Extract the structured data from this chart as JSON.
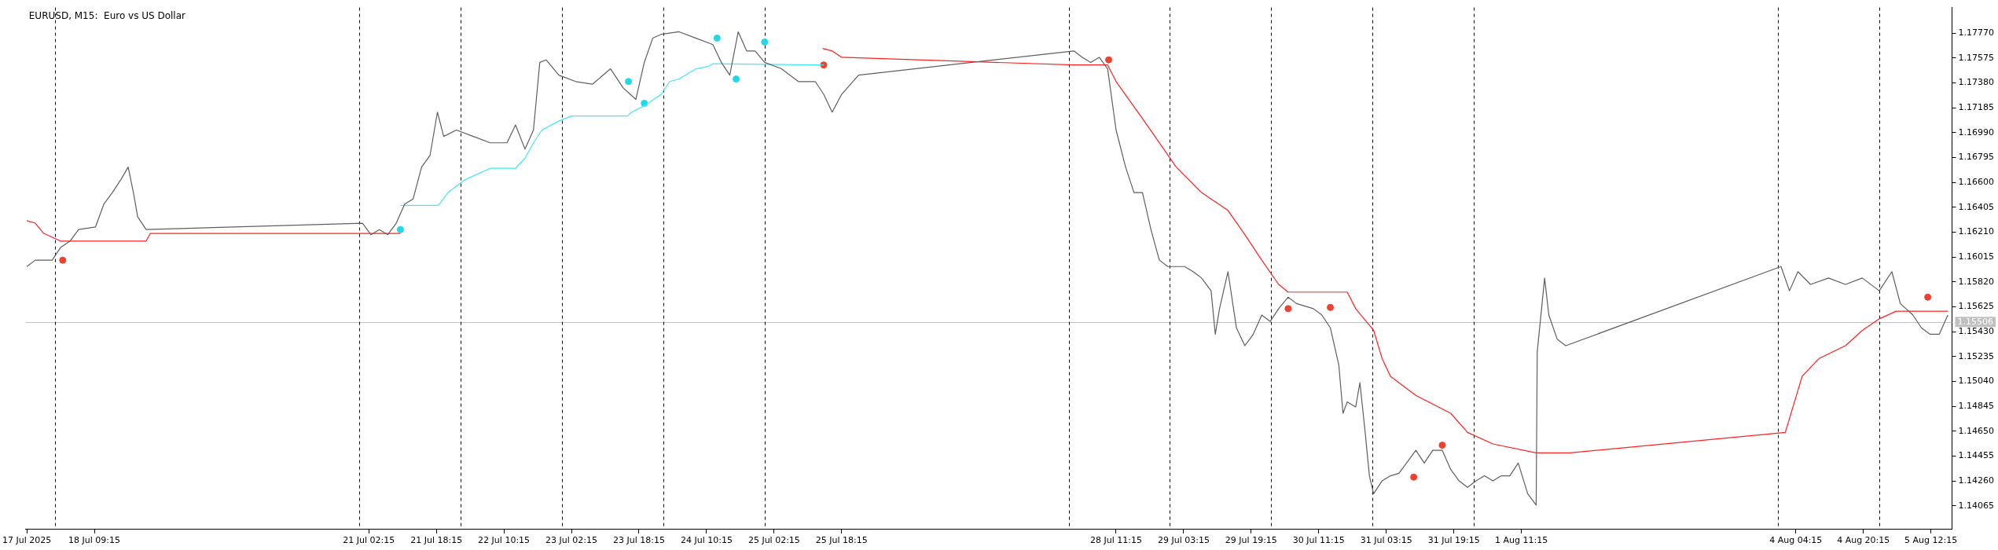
{
  "chart_data": {
    "type": "line",
    "title": "EURUSD, M15:  Euro vs US Dollar",
    "xlim": [
      "2025-07-17T17:00",
      "2025-08-05T17:15"
    ],
    "xticks": [
      {
        "value": "2025-07-17T17:15",
        "label": "17 Jul 2025"
      },
      {
        "value": "2025-07-18T09:15",
        "label": "18 Jul 09:15"
      },
      {
        "value": "2025-07-21T02:15",
        "label": "21 Jul 02:15"
      },
      {
        "value": "2025-07-21T18:15",
        "label": "21 Jul 18:15"
      },
      {
        "value": "2025-07-22T10:15",
        "label": "22 Jul 10:15"
      },
      {
        "value": "2025-07-23T02:15",
        "label": "23 Jul 02:15"
      },
      {
        "value": "2025-07-23T18:15",
        "label": "23 Jul 18:15"
      },
      {
        "value": "2025-07-24T10:15",
        "label": "24 Jul 10:15"
      },
      {
        "value": "2025-07-25T02:15",
        "label": "25 Jul 02:15"
      },
      {
        "value": "2025-07-25T18:15",
        "label": "25 Jul 18:15"
      },
      {
        "value": "2025-07-28T11:15",
        "label": "28 Jul 11:15"
      },
      {
        "value": "2025-07-29T03:15",
        "label": "29 Jul 03:15"
      },
      {
        "value": "2025-07-29T19:15",
        "label": "29 Jul 19:15"
      },
      {
        "value": "2025-07-30T11:15",
        "label": "30 Jul 11:15"
      },
      {
        "value": "2025-07-31T03:15",
        "label": "31 Jul 03:15"
      },
      {
        "value": "2025-07-31T19:15",
        "label": "31 Jul 19:15"
      },
      {
        "value": "2025-08-01T11:15",
        "label": "1 Aug 11:15"
      },
      {
        "value": "2025-08-04T04:15",
        "label": "4 Aug 04:15"
      },
      {
        "value": "2025-08-04T20:15",
        "label": "4 Aug 20:15"
      },
      {
        "value": "2025-08-05T12:15",
        "label": "5 Aug 12:15"
      }
    ],
    "ylim": [
      1.1388,
      1.1797
    ],
    "yticks": [
      {
        "value": 1.1777,
        "label": "1.17770"
      },
      {
        "value": 1.17575,
        "label": "1.17575"
      },
      {
        "value": 1.1738,
        "label": "1.17380"
      },
      {
        "value": 1.17185,
        "label": "1.17185"
      },
      {
        "value": 1.1699,
        "label": "1.16990"
      },
      {
        "value": 1.16795,
        "label": "1.16795"
      },
      {
        "value": 1.166,
        "label": "1.16600"
      },
      {
        "value": 1.16405,
        "label": "1.16405"
      },
      {
        "value": 1.1621,
        "label": "1.16210"
      },
      {
        "value": 1.16015,
        "label": "1.16015"
      },
      {
        "value": 1.1582,
        "label": "1.15820"
      },
      {
        "value": 1.15625,
        "label": "1.15625"
      },
      {
        "value": 1.1543,
        "label": "1.15430"
      },
      {
        "value": 1.15235,
        "label": "1.15235"
      },
      {
        "value": 1.1504,
        "label": "1.15040"
      },
      {
        "value": 1.14845,
        "label": "1.14845"
      },
      {
        "value": 1.1465,
        "label": "1.14650"
      },
      {
        "value": 1.14455,
        "label": "1.14455"
      },
      {
        "value": 1.1426,
        "label": "1.14260"
      },
      {
        "value": 1.14065,
        "label": "1.14065"
      }
    ],
    "grid": false,
    "legend": false,
    "marker": "none",
    "line_style": "solid",
    "ref_lines": [
      {
        "axis": "y",
        "value": 1.15506,
        "label": "1.15506",
        "color": "#c0c0c0",
        "line_style": "solid"
      },
      {
        "axis": "x",
        "value": "2025-07-18T00:00",
        "color": "#000000",
        "line_style": "dashed"
      },
      {
        "axis": "x",
        "value": "2025-07-21T00:00",
        "color": "#000000",
        "line_style": "dashed"
      },
      {
        "axis": "x",
        "value": "2025-07-22T00:00",
        "color": "#000000",
        "line_style": "dashed"
      },
      {
        "axis": "x",
        "value": "2025-07-23T00:00",
        "color": "#000000",
        "line_style": "dashed"
      },
      {
        "axis": "x",
        "value": "2025-07-24T00:00",
        "color": "#000000",
        "line_style": "dashed"
      },
      {
        "axis": "x",
        "value": "2025-07-25T00:00",
        "color": "#000000",
        "line_style": "dashed"
      },
      {
        "axis": "x",
        "value": "2025-07-28T00:00",
        "color": "#000000",
        "line_style": "dashed"
      },
      {
        "axis": "x",
        "value": "2025-07-29T00:00",
        "color": "#000000",
        "line_style": "dashed"
      },
      {
        "axis": "x",
        "value": "2025-07-30T00:00",
        "color": "#000000",
        "line_style": "dashed"
      },
      {
        "axis": "x",
        "value": "2025-07-31T00:00",
        "color": "#000000",
        "line_style": "dashed"
      },
      {
        "axis": "x",
        "value": "2025-08-01T00:00",
        "color": "#000000",
        "line_style": "dashed"
      },
      {
        "axis": "x",
        "value": "2025-08-04T00:00",
        "color": "#000000",
        "line_style": "dashed"
      },
      {
        "axis": "x",
        "value": "2025-08-05T00:00",
        "color": "#000000",
        "line_style": "dashed"
      }
    ],
    "series": [
      {
        "color": "#5f5f5f",
        "x": [
          "2025-07-17T17:15",
          "2025-07-17T19:15",
          "2025-07-17T23:15",
          "2025-07-18T01:15",
          "2025-07-18T03:30",
          "2025-07-18T05:30",
          "2025-07-18T09:30",
          "2025-07-18T11:30",
          "2025-07-18T13:30",
          "2025-07-18T15:30",
          "2025-07-18T17:15",
          "2025-07-18T18:30",
          "2025-07-18T19:30",
          "2025-07-18T21:30",
          "2025-07-21T00:45",
          "2025-07-21T02:45",
          "2025-07-21T04:45",
          "2025-07-21T06:45",
          "2025-07-21T08:45",
          "2025-07-21T10:45",
          "2025-07-21T12:45",
          "2025-07-21T14:45",
          "2025-07-21T16:45",
          "2025-07-21T18:30",
          "2025-07-21T20:00",
          "2025-07-21T23:00",
          "2025-07-22T03:00",
          "2025-07-22T07:00",
          "2025-07-22T11:00",
          "2025-07-22T13:00",
          "2025-07-22T15:15",
          "2025-07-22T17:15",
          "2025-07-22T18:45",
          "2025-07-22T20:15",
          "2025-07-22T23:15",
          "2025-07-23T03:15",
          "2025-07-23T07:15",
          "2025-07-23T11:30",
          "2025-07-23T14:30",
          "2025-07-23T17:30",
          "2025-07-23T19:30",
          "2025-07-23T21:30",
          "2025-07-23T23:30",
          "2025-07-24T03:45",
          "2025-07-24T07:45",
          "2025-07-24T11:45",
          "2025-07-24T13:45",
          "2025-07-24T15:45",
          "2025-07-24T17:45",
          "2025-07-24T19:45",
          "2025-07-24T21:45",
          "2025-07-25T00:00",
          "2025-07-25T04:00",
          "2025-07-25T08:00",
          "2025-07-25T12:00",
          "2025-07-25T14:00",
          "2025-07-25T16:00",
          "2025-07-25T18:15",
          "2025-07-25T22:15",
          "2025-07-28T01:15",
          "2025-07-28T03:15",
          "2025-07-28T05:15",
          "2025-07-28T07:15",
          "2025-07-28T09:15",
          "2025-07-28T11:15",
          "2025-07-28T13:30",
          "2025-07-28T15:30",
          "2025-07-28T17:30",
          "2025-07-28T19:30",
          "2025-07-28T21:30",
          "2025-07-28T23:30",
          "2025-07-29T03:30",
          "2025-07-29T05:30",
          "2025-07-29T07:30",
          "2025-07-29T09:45",
          "2025-07-29T10:45",
          "2025-07-29T11:45",
          "2025-07-29T13:45",
          "2025-07-29T15:45",
          "2025-07-29T17:45",
          "2025-07-29T19:45",
          "2025-07-29T21:45",
          "2025-07-29T23:45",
          "2025-07-30T01:45",
          "2025-07-30T04:00",
          "2025-07-30T06:00",
          "2025-07-30T10:00",
          "2025-07-30T12:00",
          "2025-07-30T14:00",
          "2025-07-30T16:00",
          "2025-07-30T17:00",
          "2025-07-30T18:00",
          "2025-07-30T20:00",
          "2025-07-30T21:00",
          "2025-07-30T22:15",
          "2025-07-30T23:15",
          "2025-07-31T00:15",
          "2025-07-31T02:15",
          "2025-07-31T04:15",
          "2025-07-31T06:15",
          "2025-07-31T10:15",
          "2025-07-31T12:15",
          "2025-07-31T14:15",
          "2025-07-31T16:30",
          "2025-07-31T18:30",
          "2025-07-31T20:30",
          "2025-07-31T22:30",
          "2025-08-01T00:30",
          "2025-08-01T02:30",
          "2025-08-01T04:30",
          "2025-08-01T06:30",
          "2025-08-01T08:30",
          "2025-08-01T10:30",
          "2025-08-01T12:45",
          "2025-08-01T14:45",
          "2025-08-01T15:00",
          "2025-08-01T16:45",
          "2025-08-01T17:45",
          "2025-08-01T19:45",
          "2025-08-01T21:45",
          "2025-08-04T00:45",
          "2025-08-04T02:45",
          "2025-08-04T04:45",
          "2025-08-04T07:45",
          "2025-08-04T12:00",
          "2025-08-04T16:00",
          "2025-08-04T20:00",
          "2025-08-05T00:00",
          "2025-08-05T03:00",
          "2025-08-05T05:00",
          "2025-08-05T08:00",
          "2025-08-05T10:00",
          "2025-08-05T12:00",
          "2025-08-05T14:15",
          "2025-08-05T16:15"
        ],
        "values": [
          1.1594,
          1.1599,
          1.1599,
          1.1609,
          1.1614,
          1.1623,
          1.1625,
          1.1643,
          1.1652,
          1.1662,
          1.1672,
          1.1652,
          1.1633,
          1.1623,
          1.1628,
          1.1619,
          1.1623,
          1.1619,
          1.1628,
          1.1643,
          1.1647,
          1.1672,
          1.1681,
          1.1715,
          1.1696,
          1.1701,
          1.1696,
          1.1691,
          1.1691,
          1.1705,
          1.1686,
          1.1701,
          1.1754,
          1.1756,
          1.1744,
          1.1739,
          1.1737,
          1.1749,
          1.1734,
          1.1725,
          1.1754,
          1.1773,
          1.1776,
          1.1778,
          1.1773,
          1.1768,
          1.1754,
          1.1744,
          1.1778,
          1.1763,
          1.1763,
          1.1754,
          1.1749,
          1.1739,
          1.1739,
          1.1729,
          1.1715,
          1.1729,
          1.1744,
          1.1763,
          1.1758,
          1.1754,
          1.1758,
          1.1749,
          1.1701,
          1.1672,
          1.1652,
          1.1652,
          1.1623,
          1.1599,
          1.1594,
          1.1594,
          1.159,
          1.1585,
          1.1575,
          1.1541,
          1.1561,
          1.159,
          1.1546,
          1.1532,
          1.1541,
          1.1556,
          1.1551,
          1.1561,
          1.157,
          1.1565,
          1.1561,
          1.1556,
          1.1546,
          1.1517,
          1.1479,
          1.1488,
          1.1484,
          1.1503,
          1.1464,
          1.143,
          1.1416,
          1.1426,
          1.143,
          1.1432,
          1.145,
          1.144,
          1.145,
          1.145,
          1.1435,
          1.1426,
          1.1421,
          1.1426,
          1.143,
          1.1426,
          1.143,
          1.143,
          1.144,
          1.1416,
          1.1407,
          1.1527,
          1.1585,
          1.1556,
          1.1537,
          1.1532,
          1.1594,
          1.1575,
          1.159,
          1.158,
          1.1585,
          1.158,
          1.1585,
          1.1575,
          1.159,
          1.1565,
          1.1556,
          1.1546,
          1.1541,
          1.1541,
          1.1556
        ]
      },
      {
        "color": "#ff2020",
        "x": [
          "2025-07-17T17:15",
          "2025-07-17T19:15",
          "2025-07-17T21:15",
          "2025-07-18T01:15",
          "2025-07-18T21:30",
          "2025-07-18T22:30",
          "2025-07-21T09:45",
          "2025-07-22T21:15",
          "2025-07-25T13:45",
          "2025-07-25T16:00",
          "2025-07-25T18:15",
          "2025-07-28T01:15",
          "2025-07-28T09:15",
          "2025-07-28T11:15",
          "2025-07-28T17:30",
          "2025-07-29T01:30",
          "2025-07-29T07:30",
          "2025-07-29T13:45",
          "2025-07-29T17:45",
          "2025-07-29T21:45",
          "2025-07-30T01:45",
          "2025-07-30T04:00",
          "2025-07-30T18:00",
          "2025-07-30T20:00",
          "2025-07-31T00:15",
          "2025-07-31T02:15",
          "2025-07-31T04:15",
          "2025-07-31T10:15",
          "2025-07-31T18:30",
          "2025-07-31T22:30",
          "2025-08-01T04:30",
          "2025-08-01T14:45",
          "2025-08-01T22:45",
          "2025-08-04T01:45",
          "2025-08-04T05:45",
          "2025-08-04T09:45",
          "2025-08-04T16:00",
          "2025-08-04T20:00",
          "2025-08-05T00:00",
          "2025-08-05T04:00",
          "2025-08-05T16:15"
        ],
        "values": [
          1.163,
          1.1628,
          1.162,
          1.1614,
          1.1614,
          1.162,
          1.162,
          null,
          1.1765,
          1.1763,
          1.1758,
          1.1752,
          1.1752,
          1.1739,
          1.171,
          1.1672,
          1.1652,
          1.1638,
          1.1619,
          1.1599,
          1.158,
          1.1574,
          1.1574,
          1.1561,
          1.1544,
          1.1522,
          1.1508,
          1.1493,
          1.1479,
          1.1464,
          1.1455,
          1.1448,
          1.1448,
          1.1464,
          1.1508,
          1.1522,
          1.1532,
          1.1544,
          1.1553,
          1.1559,
          1.1559
        ]
      },
      {
        "color": "#40e8f4",
        "x": [
          "2025-07-21T09:45",
          "2025-07-21T18:45",
          "2025-07-21T21:00",
          "2025-07-22T01:00",
          "2025-07-22T07:00",
          "2025-07-22T13:00",
          "2025-07-22T15:15",
          "2025-07-22T17:15",
          "2025-07-22T19:15",
          "2025-07-22T23:15",
          "2025-07-23T02:15",
          "2025-07-23T15:30",
          "2025-07-23T16:30",
          "2025-07-23T19:30",
          "2025-07-23T23:30",
          "2025-07-24T01:30",
          "2025-07-24T03:45",
          "2025-07-24T07:45",
          "2025-07-24T10:45",
          "2025-07-24T11:45",
          "2025-07-25T14:00"
        ],
        "values": [
          1.1642,
          1.1642,
          1.1652,
          1.1662,
          1.1671,
          1.1671,
          1.1679,
          1.1691,
          1.1701,
          1.1708,
          1.1712,
          1.1712,
          1.1715,
          1.172,
          1.1729,
          1.1739,
          1.1741,
          1.1749,
          1.1751,
          1.1753,
          1.1752
        ]
      },
      {
        "type": "scatter",
        "marker": "circle",
        "color": "#20d8e8",
        "x": [
          "2025-07-21T09:45",
          "2025-07-23T19:30",
          "2025-07-24T17:15",
          "2025-07-23T15:45",
          "2025-07-24T12:45",
          "2025-07-25T00:00"
        ],
        "values": [
          1.1623,
          1.1722,
          1.1741,
          1.1739,
          1.1773,
          1.177
        ]
      },
      {
        "type": "scatter",
        "marker": "circle",
        "color": "#f04030",
        "x": [
          "2025-07-25T14:00",
          "2025-07-28T09:30",
          "2025-07-30T14:00",
          "2025-07-31T16:30",
          "2025-08-05T11:30",
          "2025-07-18T01:45",
          "2025-07-30T04:00",
          "2025-07-31T09:45"
        ],
        "values": [
          1.1752,
          1.1756,
          1.1562,
          1.1454,
          1.157,
          1.1599,
          1.1561,
          1.1429
        ]
      }
    ]
  }
}
